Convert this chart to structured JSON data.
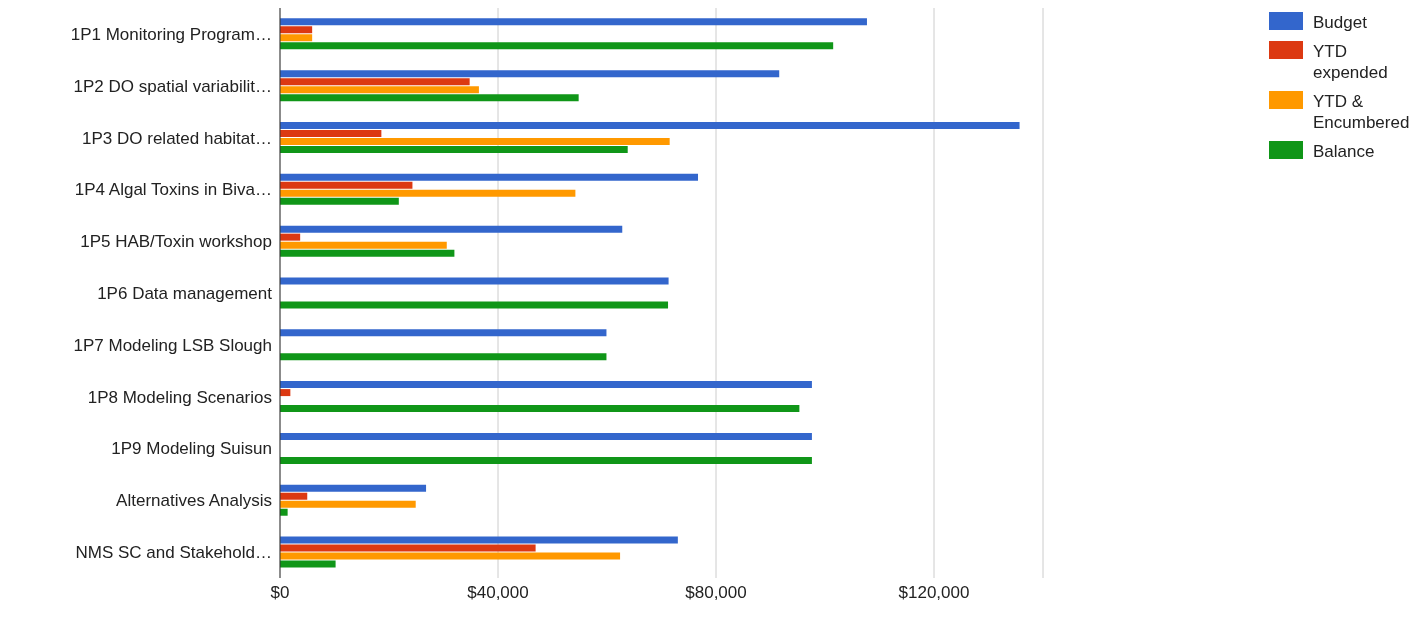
{
  "chart_data": {
    "type": "bar",
    "orientation": "horizontal",
    "categories": [
      "1P1 Monitoring Program…",
      "1P2 DO spatial variabilit…",
      "1P3 DO related habitat…",
      "1P4 Algal Toxins in Biva…",
      "1P5 HAB/Toxin workshop",
      "1P6 Data management",
      "1P7 Modeling LSB Slough",
      "1P8 Modeling Scenarios",
      "1P9 Modeling Suisun",
      "Alternatives Analysis",
      "NMS SC and Stakehold…"
    ],
    "series": [
      {
        "name": "Budget",
        "color": "#3366cc",
        "values": [
          107700,
          91600,
          135700,
          76700,
          62800,
          71300,
          59900,
          97600,
          97600,
          26800,
          73000
        ]
      },
      {
        "name": "YTD expended",
        "color": "#dc3912",
        "values": [
          5900,
          34800,
          18600,
          24300,
          3700,
          0,
          0,
          1900,
          0,
          5000,
          46900
        ]
      },
      {
        "name": "YTD & Encumbered",
        "color": "#ff9900",
        "values": [
          5900,
          36500,
          71500,
          54200,
          30600,
          0,
          0,
          0,
          0,
          24900,
          62400
        ]
      },
      {
        "name": "Balance",
        "color": "#109618",
        "values": [
          101500,
          54800,
          63800,
          21800,
          32000,
          71200,
          59900,
          95300,
          97600,
          1400,
          10200
        ]
      }
    ],
    "xlim": [
      0,
      140000
    ],
    "xticks": [
      {
        "value": 0,
        "label": "$0"
      },
      {
        "value": 40000,
        "label": "$40,000"
      },
      {
        "value": 80000,
        "label": "$80,000"
      },
      {
        "value": 120000,
        "label": "$120,000"
      }
    ],
    "grid": "x",
    "legend": "top right"
  }
}
